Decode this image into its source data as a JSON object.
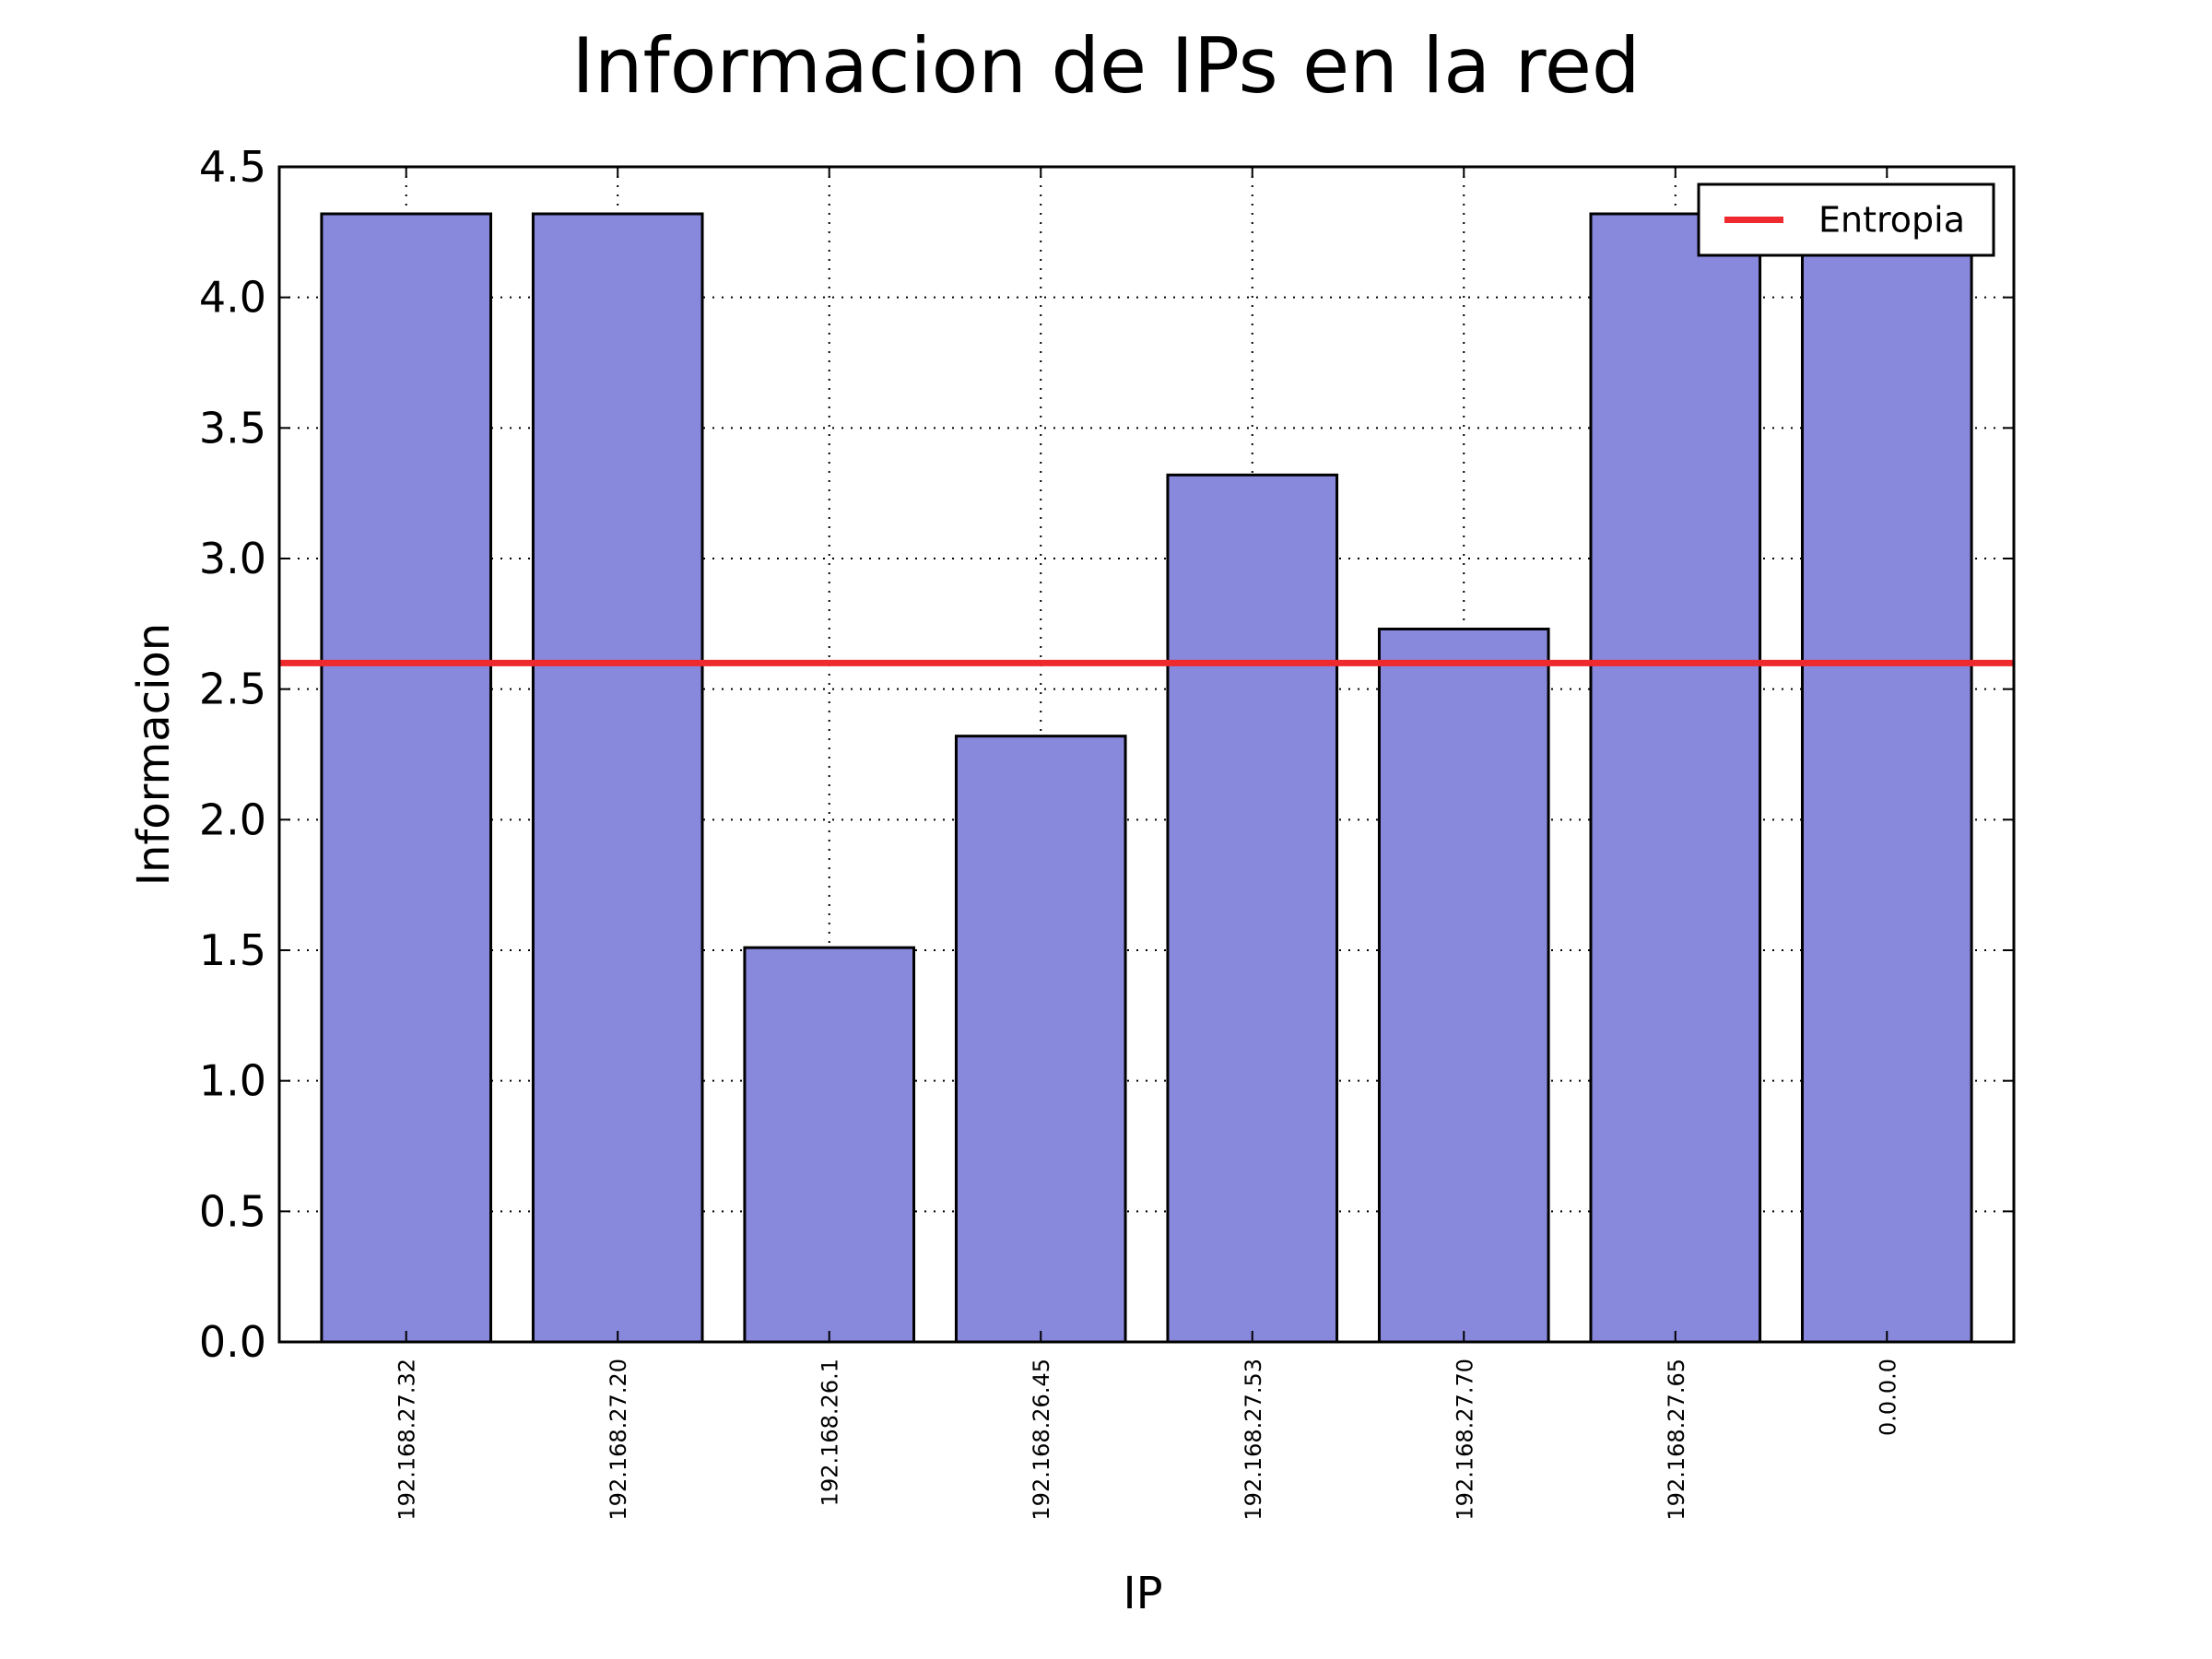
{
  "chart_data": {
    "type": "bar",
    "title": "Informacion de IPs en la red",
    "xlabel": "IP",
    "ylabel": "Informacion",
    "categories": [
      "192.168.27.32",
      "192.168.27.20",
      "192.168.26.1",
      "192.168.26.45",
      "192.168.27.53",
      "192.168.27.70",
      "192.168.27.65",
      "0.0.0.0"
    ],
    "values": [
      4.32,
      4.32,
      1.51,
      2.32,
      3.32,
      2.73,
      4.32,
      4.32
    ],
    "ylim": [
      0,
      4.5
    ],
    "yticks": [
      "0.0",
      "0.5",
      "1.0",
      "1.5",
      "2.0",
      "2.5",
      "3.0",
      "3.5",
      "4.0",
      "4.5"
    ],
    "grid": true,
    "bar_color": "#8888dd",
    "reference_line": {
      "name": "Entropia",
      "value": 2.6,
      "color": "#ee2a2e"
    },
    "legend": {
      "position": "top-right",
      "entries": [
        "Entropia"
      ]
    }
  }
}
